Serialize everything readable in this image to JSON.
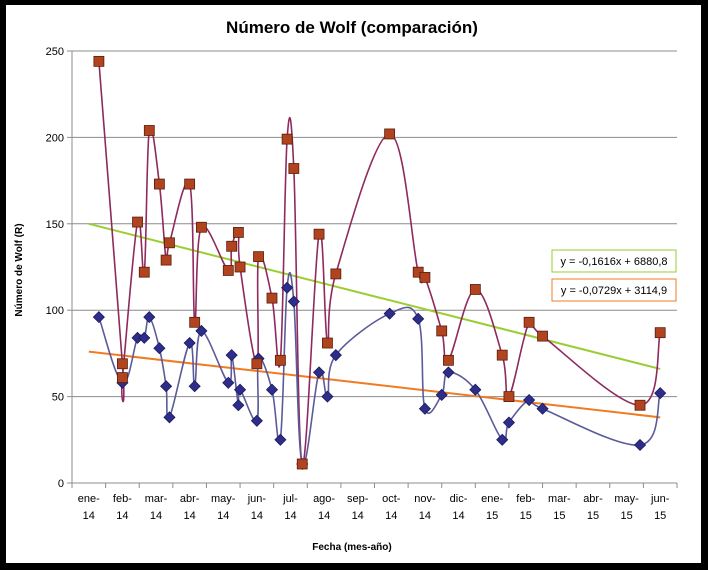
{
  "chart_data": {
    "type": "scatter",
    "title": "Número de Wolf (comparación)",
    "xlabel": "Fecha (mes-año)",
    "ylabel": "Número de Wolf (R)",
    "ylim": [
      0,
      250
    ],
    "yticks": [
      0,
      50,
      100,
      150,
      200,
      250
    ],
    "grid": "horizontal",
    "x_ticks": [
      [
        "ene-",
        "14"
      ],
      [
        "feb-",
        "14"
      ],
      [
        "mar-",
        "14"
      ],
      [
        "abr-",
        "14"
      ],
      [
        "may-",
        "14"
      ],
      [
        "jun-",
        "14"
      ],
      [
        "jul-",
        "14"
      ],
      [
        "ago-",
        "14"
      ],
      [
        "sep-",
        "14"
      ],
      [
        "oct-",
        "14"
      ],
      [
        "nov-",
        "14"
      ],
      [
        "dic-",
        "14"
      ],
      [
        "ene-",
        "15"
      ],
      [
        "feb-",
        "15"
      ],
      [
        "mar-",
        "15"
      ],
      [
        "abr-",
        "15"
      ],
      [
        "may-",
        "15"
      ],
      [
        "jun-",
        "15"
      ]
    ],
    "x_units": "months since ene-14",
    "series": [
      {
        "marker": "square",
        "color": "#8e2a5e",
        "marker_color": "#b1441e",
        "points": [
          [
            0.3,
            244
          ],
          [
            1.0,
            69
          ],
          [
            1.0,
            61
          ],
          [
            1.45,
            151
          ],
          [
            1.65,
            122
          ],
          [
            1.8,
            204
          ],
          [
            2.1,
            173
          ],
          [
            2.3,
            129
          ],
          [
            2.4,
            139
          ],
          [
            3.0,
            173
          ],
          [
            3.15,
            93
          ],
          [
            3.35,
            148
          ],
          [
            4.15,
            123
          ],
          [
            4.25,
            137
          ],
          [
            4.45,
            145
          ],
          [
            4.5,
            125
          ],
          [
            5.0,
            69
          ],
          [
            5.05,
            131
          ],
          [
            5.45,
            107
          ],
          [
            5.7,
            71
          ],
          [
            5.9,
            199
          ],
          [
            6.1,
            182
          ],
          [
            6.35,
            11
          ],
          [
            6.85,
            144
          ],
          [
            7.1,
            81
          ],
          [
            7.35,
            121
          ],
          [
            8.95,
            202
          ],
          [
            9.8,
            122
          ],
          [
            10.0,
            119
          ],
          [
            10.5,
            88
          ],
          [
            10.7,
            71
          ],
          [
            11.5,
            112
          ],
          [
            12.3,
            74
          ],
          [
            12.5,
            50
          ],
          [
            13.1,
            93
          ],
          [
            13.5,
            85
          ],
          [
            16.4,
            45
          ],
          [
            17.0,
            87
          ]
        ]
      },
      {
        "marker": "diamond",
        "color": "#5b5b9a",
        "marker_color": "#2e2e8a",
        "points": [
          [
            0.3,
            96
          ],
          [
            1.0,
            58
          ],
          [
            1.45,
            84
          ],
          [
            1.65,
            84
          ],
          [
            1.8,
            96
          ],
          [
            2.1,
            78
          ],
          [
            2.3,
            56
          ],
          [
            2.4,
            38
          ],
          [
            3.0,
            81
          ],
          [
            3.15,
            56
          ],
          [
            3.35,
            88
          ],
          [
            4.15,
            58
          ],
          [
            4.25,
            74
          ],
          [
            4.45,
            45
          ],
          [
            4.5,
            54
          ],
          [
            5.0,
            36
          ],
          [
            5.05,
            72
          ],
          [
            5.45,
            54
          ],
          [
            5.7,
            25
          ],
          [
            5.9,
            113
          ],
          [
            6.1,
            105
          ],
          [
            6.35,
            11
          ],
          [
            6.85,
            64
          ],
          [
            7.1,
            50
          ],
          [
            7.35,
            74
          ],
          [
            8.95,
            98
          ],
          [
            9.8,
            95
          ],
          [
            10.0,
            43
          ],
          [
            10.5,
            51
          ],
          [
            10.7,
            64
          ],
          [
            11.5,
            54
          ],
          [
            12.3,
            25
          ],
          [
            12.5,
            35
          ],
          [
            13.1,
            48
          ],
          [
            13.5,
            43
          ],
          [
            16.4,
            22
          ],
          [
            17.0,
            52
          ]
        ]
      }
    ],
    "trendlines": [
      {
        "color": "#9acd32",
        "from": [
          0,
          150
        ],
        "to": [
          17,
          66
        ],
        "equation": "y = -0,1616x + 6880,8"
      },
      {
        "color": "#f07b22",
        "from": [
          0,
          76
        ],
        "to": [
          17,
          38
        ],
        "equation": "y = -0,0729x + 3114,9"
      }
    ]
  }
}
